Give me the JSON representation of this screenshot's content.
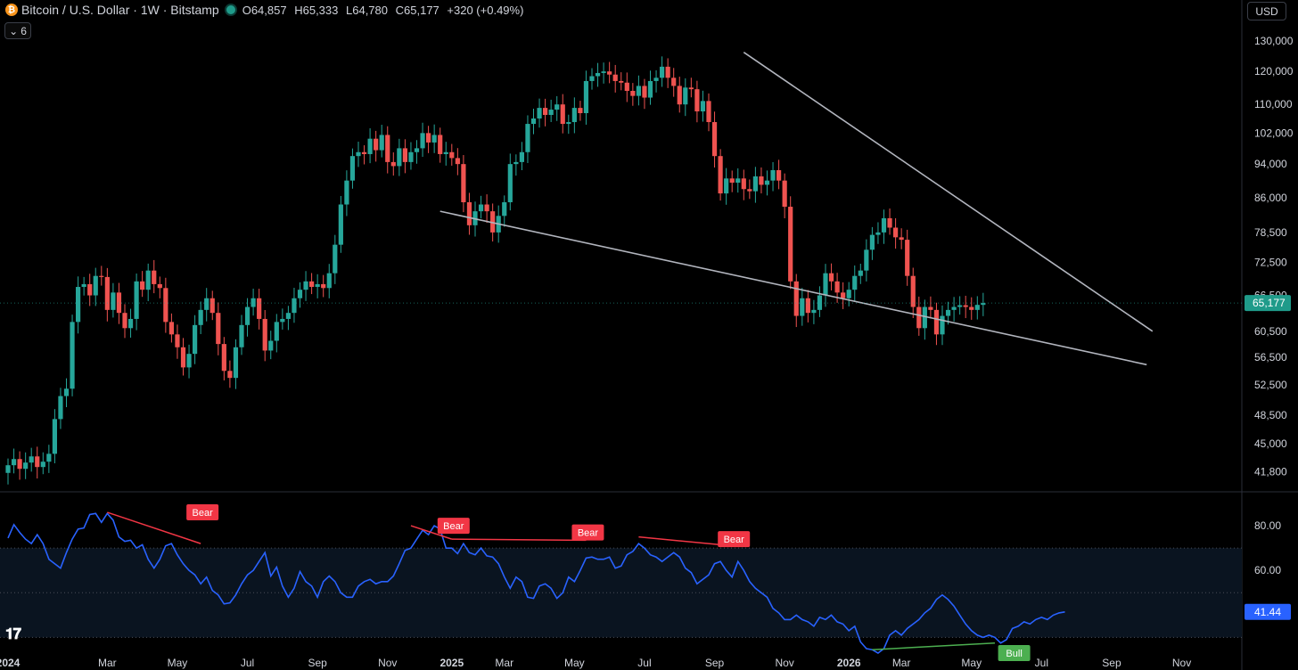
{
  "header": {
    "symbol": "Bitcoin / U.S. Dollar · 1W · Bitstamp",
    "coin_glyph": "₿",
    "open": "O64,857",
    "high": "H65,333",
    "low": "L64,780",
    "close": "C65,177",
    "change": "+320 (+0.49%)",
    "collapse_count": "6",
    "currency": "USD",
    "logo": "TV"
  },
  "colors": {
    "up": "#26a69a",
    "down": "#ef5350",
    "rsi_line": "#2962ff",
    "bear": "#f23645",
    "bull": "#4caf50",
    "trendline": "#b2b5be"
  },
  "chart_data": [
    {
      "type": "candlestick",
      "title": "Bitcoin / U.S. Dollar · 1W · Bitstamp",
      "scale": "log",
      "ylim": [
        40000,
        135000
      ],
      "price_ticks": [
        130000,
        120000,
        110000,
        102000,
        94000,
        86000,
        78500,
        72500,
        66500,
        60500,
        56500,
        52500,
        48500,
        45000,
        41800
      ],
      "price_tick_labels": [
        "130,000",
        "120,000",
        "110,000",
        "102,000",
        "94,000",
        "86,000",
        "78,500",
        "72,500",
        "66,500",
        "60,500",
        "56,500",
        "52,500",
        "48,500",
        "45,000",
        "41,800"
      ],
      "last_price_label": "65,177",
      "last_price": 65177,
      "time_labels": [
        "2024",
        "Mar",
        "May",
        "Jul",
        "Sep",
        "Nov",
        "2025",
        "Mar",
        "May",
        "Jul",
        "Sep",
        "Nov",
        "2026",
        "Mar",
        "May",
        "Jul",
        "Sep",
        "Nov"
      ],
      "time_label_weeks": [
        0,
        17,
        29,
        41,
        53,
        65,
        76,
        85,
        97,
        109,
        121,
        133,
        144,
        153,
        165,
        177,
        189,
        201
      ],
      "closes": [
        42500,
        43200,
        42100,
        42800,
        43500,
        42300,
        42900,
        43800,
        48000,
        51000,
        52000,
        62000,
        68000,
        68500,
        66500,
        70000,
        69800,
        64000,
        67000,
        63500,
        61000,
        62500,
        69000,
        67500,
        71000,
        68500,
        67800,
        62000,
        60000,
        58000,
        55000,
        57000,
        61500,
        64000,
        66000,
        63500,
        58500,
        54500,
        53500,
        58000,
        61500,
        64500,
        66000,
        62500,
        57500,
        59000,
        62000,
        62500,
        63500,
        66000,
        67500,
        69000,
        68000,
        68500,
        67800,
        70500,
        76000,
        84500,
        90000,
        96000,
        97000,
        96500,
        100500,
        97500,
        101500,
        94500,
        93500,
        98000,
        94500,
        97000,
        98000,
        102000,
        99500,
        101500,
        96500,
        97000,
        95500,
        94000,
        85000,
        80000,
        83000,
        84500,
        83000,
        78500,
        82000,
        85000,
        94000,
        94500,
        97000,
        104500,
        106000,
        109000,
        107000,
        108500,
        110000,
        104500,
        105000,
        109000,
        107500,
        117000,
        118500,
        119500,
        120000,
        119000,
        117000,
        116500,
        114000,
        112500,
        115500,
        112000,
        117000,
        118000,
        121500,
        118000,
        115500,
        110000,
        115000,
        114500,
        108000,
        111000,
        105000,
        96000,
        87000,
        90500,
        89500,
        90500,
        88000,
        87500,
        91000,
        89000,
        90000,
        92500,
        90000,
        84000,
        69000,
        63000,
        66000,
        63500,
        64000,
        66500,
        70500,
        69000,
        67000,
        66000,
        67500,
        70000,
        71000,
        75000,
        78000,
        78500,
        81500,
        79500,
        77500,
        77000,
        70000,
        64500,
        61000,
        64500,
        64000,
        60000,
        63000,
        64000,
        64500,
        64800,
        64500,
        64000,
        64857,
        65177
      ],
      "wick_extremes": {
        "cycle_high": 126200,
        "cycle_low_week_idx": 140,
        "cycle_low": 60000
      },
      "trendlines": [
        {
          "from": {
            "week": 126,
            "price": 126200
          },
          "to": {
            "week": 196,
            "price": 60500
          }
        },
        {
          "from": {
            "week": 74,
            "price": 83000
          },
          "to": {
            "week": 195,
            "price": 55400
          }
        }
      ]
    },
    {
      "type": "line",
      "ylim": [
        21,
        92
      ],
      "ticks": [
        80,
        60
      ],
      "tick_labels": [
        "80.00",
        "60.00"
      ],
      "bands": [
        70,
        50,
        30
      ],
      "last_value_label": "41.44",
      "values": [
        74.5,
        80.5,
        77,
        74,
        72,
        76,
        72,
        65,
        63,
        61,
        68,
        74,
        78.5,
        79,
        85,
        85.5,
        81.5,
        85.5,
        82.5,
        75,
        73,
        73.5,
        70,
        71.5,
        65,
        61,
        65,
        71,
        72,
        67,
        63,
        60,
        58,
        54,
        57,
        51,
        49,
        45,
        45.5,
        49,
        54,
        58,
        60,
        64,
        68,
        57.5,
        61.5,
        53,
        48,
        52,
        59.5,
        55,
        53,
        48,
        55,
        57.5,
        55,
        50,
        48,
        48,
        53,
        55,
        56,
        54,
        55,
        55,
        57.5,
        63,
        69,
        70,
        74,
        78,
        76,
        80,
        78.5,
        70,
        70,
        67.5,
        72,
        68,
        67,
        70,
        66.5,
        66,
        63,
        57,
        52,
        57,
        55,
        48,
        47.5,
        53,
        54,
        52,
        47.5,
        50,
        57,
        55,
        60,
        65.5,
        66,
        65,
        65,
        66,
        61,
        62,
        67,
        68.5,
        72,
        70,
        67,
        66,
        64,
        66,
        68,
        66,
        61,
        59,
        54,
        56,
        58,
        63,
        64,
        60,
        57,
        64,
        60,
        55,
        52,
        50,
        48,
        43,
        41,
        38,
        38,
        40,
        38,
        37,
        35,
        39,
        38,
        40,
        37,
        36,
        33,
        35,
        28,
        25,
        24.5,
        23,
        25,
        31,
        33,
        31,
        34,
        36,
        38,
        41,
        43,
        47,
        49,
        47,
        44,
        40,
        36,
        33,
        31,
        30,
        31,
        30,
        27.5,
        29,
        34,
        35,
        37,
        36,
        38,
        39,
        38,
        40,
        41,
        41.44
      ],
      "divergences": [
        {
          "label": "Bear",
          "kind": "bear",
          "from": {
            "week": 17,
            "value": 86
          },
          "to": {
            "week": 33,
            "value": 72
          }
        },
        {
          "label": "Bear",
          "kind": "bear",
          "from": {
            "week": 69,
            "value": 80
          },
          "to": {
            "week": 76,
            "value": 74
          }
        },
        {
          "label": "Bear",
          "kind": "bear",
          "from": {
            "week": 76,
            "value": 74
          },
          "to": {
            "week": 99,
            "value": 73.5
          }
        },
        {
          "label": "Bear",
          "kind": "bear",
          "from": {
            "week": 108,
            "value": 75
          },
          "to": {
            "week": 124,
            "value": 71
          }
        },
        {
          "label": "Bull",
          "kind": "bull",
          "from": {
            "week": 148,
            "value": 24.5
          },
          "to": {
            "week": 169,
            "value": 27.5
          }
        }
      ],
      "divergence_labels": [
        {
          "label": "Bear",
          "week": 33,
          "value": 86,
          "kind": "bear"
        },
        {
          "label": "Bear",
          "week": 76,
          "value": 80,
          "kind": "bear"
        },
        {
          "label": "Bear",
          "week": 99,
          "value": 77,
          "kind": "bear"
        },
        {
          "label": "Bear",
          "week": 124,
          "value": 74,
          "kind": "bear"
        },
        {
          "label": "Bull",
          "week": 172,
          "value": 23,
          "kind": "bull"
        }
      ]
    }
  ]
}
